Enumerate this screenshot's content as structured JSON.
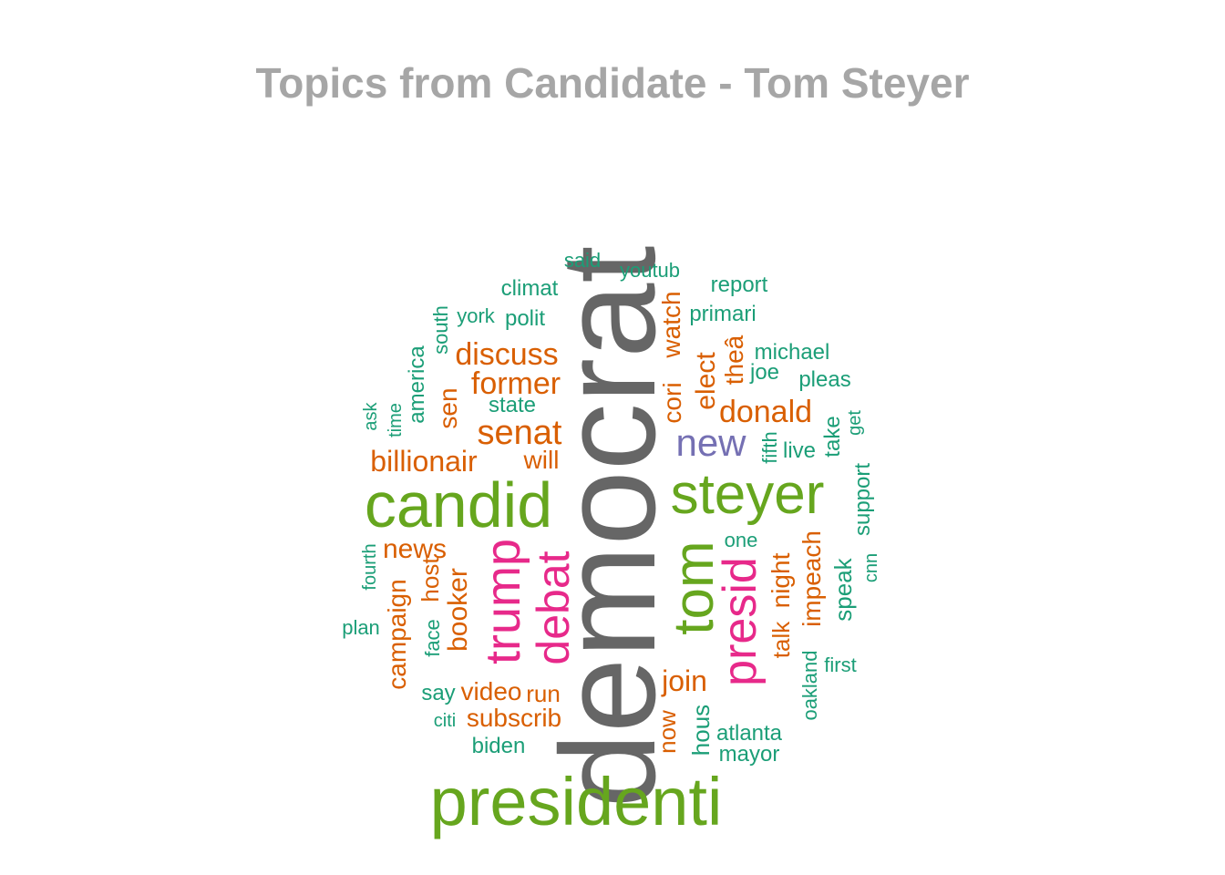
{
  "title": "Topics from Candidate - Tom Steyer",
  "colors": {
    "gray": "#666666",
    "green": "#66a61e",
    "magenta": "#e7298a",
    "orange": "#d95f02",
    "purple": "#7570b3",
    "teal": "#1b9e77"
  },
  "words": [
    {
      "text": "democrat",
      "color": "gray"
    },
    {
      "text": "presidenti",
      "color": "green"
    },
    {
      "text": "candid",
      "color": "green"
    },
    {
      "text": "steyer",
      "color": "green"
    },
    {
      "text": "tom",
      "color": "green"
    },
    {
      "text": "trump",
      "color": "magenta"
    },
    {
      "text": "debat",
      "color": "magenta"
    },
    {
      "text": "presid",
      "color": "magenta"
    },
    {
      "text": "new",
      "color": "purple"
    },
    {
      "text": "senat",
      "color": "orange"
    },
    {
      "text": "former",
      "color": "orange"
    },
    {
      "text": "discuss",
      "color": "orange"
    },
    {
      "text": "billionair",
      "color": "orange"
    },
    {
      "text": "will",
      "color": "orange"
    },
    {
      "text": "sen",
      "color": "orange"
    },
    {
      "text": "news",
      "color": "orange"
    },
    {
      "text": "booker",
      "color": "orange"
    },
    {
      "text": "campaign",
      "color": "orange"
    },
    {
      "text": "host",
      "color": "orange"
    },
    {
      "text": "video",
      "color": "orange"
    },
    {
      "text": "subscrib",
      "color": "orange"
    },
    {
      "text": "run",
      "color": "orange"
    },
    {
      "text": "donald",
      "color": "orange"
    },
    {
      "text": "elect",
      "color": "orange"
    },
    {
      "text": "cori",
      "color": "orange"
    },
    {
      "text": "watch",
      "color": "orange"
    },
    {
      "text": "theâ",
      "color": "orange"
    },
    {
      "text": "join",
      "color": "orange"
    },
    {
      "text": "now",
      "color": "orange"
    },
    {
      "text": "talk",
      "color": "orange"
    },
    {
      "text": "night",
      "color": "orange"
    },
    {
      "text": "impeach",
      "color": "orange"
    },
    {
      "text": "said",
      "color": "teal"
    },
    {
      "text": "youtub",
      "color": "teal"
    },
    {
      "text": "climat",
      "color": "teal"
    },
    {
      "text": "report",
      "color": "teal"
    },
    {
      "text": "york",
      "color": "teal"
    },
    {
      "text": "polit",
      "color": "teal"
    },
    {
      "text": "south",
      "color": "teal"
    },
    {
      "text": "primari",
      "color": "teal"
    },
    {
      "text": "america",
      "color": "teal"
    },
    {
      "text": "michael",
      "color": "teal"
    },
    {
      "text": "joe",
      "color": "teal"
    },
    {
      "text": "pleas",
      "color": "teal"
    },
    {
      "text": "state",
      "color": "teal"
    },
    {
      "text": "ask",
      "color": "teal"
    },
    {
      "text": "time",
      "color": "teal"
    },
    {
      "text": "fifth",
      "color": "teal"
    },
    {
      "text": "live",
      "color": "teal"
    },
    {
      "text": "take",
      "color": "teal"
    },
    {
      "text": "get",
      "color": "teal"
    },
    {
      "text": "support",
      "color": "teal"
    },
    {
      "text": "one",
      "color": "teal"
    },
    {
      "text": "fourth",
      "color": "teal"
    },
    {
      "text": "cnn",
      "color": "teal"
    },
    {
      "text": "speak",
      "color": "teal"
    },
    {
      "text": "plan",
      "color": "teal"
    },
    {
      "text": "face",
      "color": "teal"
    },
    {
      "text": "first",
      "color": "teal"
    },
    {
      "text": "say",
      "color": "teal"
    },
    {
      "text": "oakland",
      "color": "teal"
    },
    {
      "text": "citi",
      "color": "teal"
    },
    {
      "text": "hous",
      "color": "teal"
    },
    {
      "text": "atlanta",
      "color": "teal"
    },
    {
      "text": "biden",
      "color": "teal"
    },
    {
      "text": "mayor",
      "color": "teal"
    }
  ]
}
